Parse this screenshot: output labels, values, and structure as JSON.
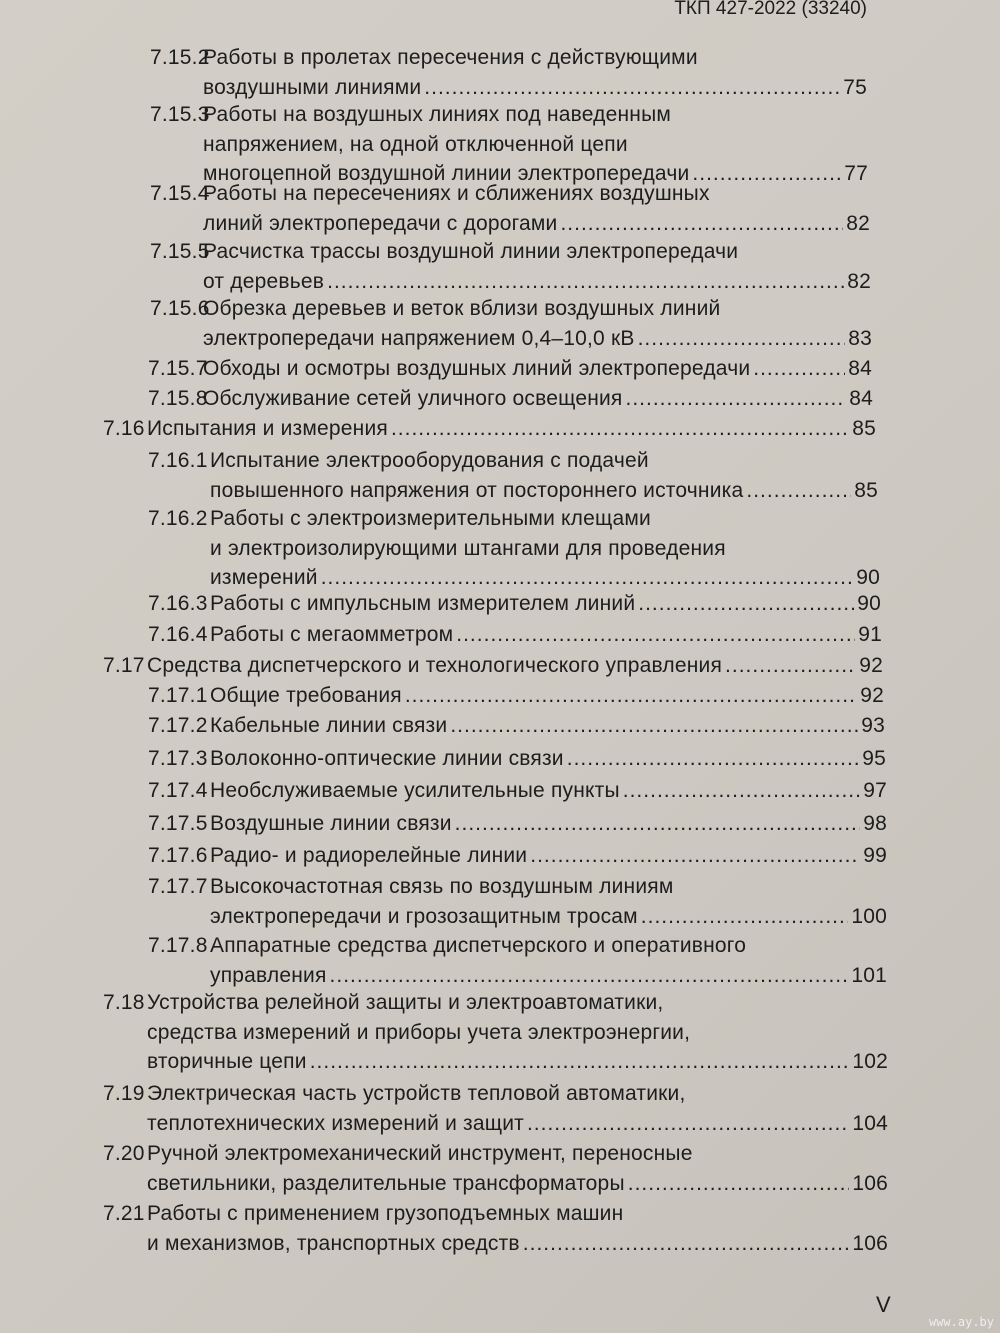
{
  "header": {
    "doc_code": "ТКП 427-2022 (33240)"
  },
  "footer": {
    "page_roman": "V",
    "watermark": "www.ay.by"
  },
  "entries": [
    {
      "num": "7.15.2",
      "lines": [
        "Работы в пролетах пересечения с действующими",
        "воздушными линиями"
      ],
      "page": "75"
    },
    {
      "num": "7.15.3",
      "lines": [
        "Работы на воздушных линиях под наведенным",
        "напряжением, на одной отключенной цепи",
        "многоцепной воздушной линии электропередачи"
      ],
      "page": "77"
    },
    {
      "num": "7.15.4",
      "lines": [
        "Работы на пересечениях и сближениях воздушных",
        "линий электропередачи с дорогами"
      ],
      "page": "82"
    },
    {
      "num": "7.15.5",
      "lines": [
        "Расчистка трассы воздушной линии электропередачи",
        "от деревьев"
      ],
      "page": "82"
    },
    {
      "num": "7.15.6",
      "lines": [
        "Обрезка деревьев и веток вблизи воздушных линий",
        "электропередачи напряжением 0,4–10,0 кВ"
      ],
      "page": "83"
    },
    {
      "num": "7.15.7",
      "lines": [
        "Обходы и осмотры воздушных линий электропередачи"
      ],
      "page": "84"
    },
    {
      "num": "7.15.8",
      "lines": [
        "Обслуживание сетей уличного освещения"
      ],
      "page": "84"
    },
    {
      "num": "7.16",
      "lines": [
        "Испытания и измерения"
      ],
      "page": "85"
    },
    {
      "num": "7.16.1",
      "lines": [
        "Испытание электрооборудования с подачей",
        "повышенного напряжения от постороннего источника"
      ],
      "page": "85"
    },
    {
      "num": "7.16.2",
      "lines": [
        "Работы с электроизмерительными клещами",
        "и электроизолирующими штангами для проведения",
        "измерений"
      ],
      "page": "90"
    },
    {
      "num": "7.16.3",
      "lines": [
        "Работы с импульсным измерителем линий"
      ],
      "page": "90"
    },
    {
      "num": "7.16.4",
      "lines": [
        "Работы с мегаомметром"
      ],
      "page": "91"
    },
    {
      "num": "7.17",
      "lines": [
        "Средства диспетчерского и технологического управления"
      ],
      "page": "92"
    },
    {
      "num": "7.17.1",
      "lines": [
        "Общие требования"
      ],
      "page": "92"
    },
    {
      "num": "7.17.2",
      "lines": [
        "Кабельные линии связи"
      ],
      "page": "93"
    },
    {
      "num": "7.17.3",
      "lines": [
        "Волоконно-оптические линии связи"
      ],
      "page": "95"
    },
    {
      "num": "7.17.4",
      "lines": [
        "Необслуживаемые усилительные пункты"
      ],
      "page": "97"
    },
    {
      "num": "7.17.5",
      "lines": [
        "Воздушные линии связи"
      ],
      "page": "98"
    },
    {
      "num": "7.17.6",
      "lines": [
        "Радио- и радиорелейные линии"
      ],
      "page": "99"
    },
    {
      "num": "7.17.7",
      "lines": [
        "Высокочастотная связь по воздушным линиям",
        "электропередачи и грозозащитным тросам"
      ],
      "page": "100"
    },
    {
      "num": "7.17.8",
      "lines": [
        "Аппаратные средства диспетчерского и оперативного",
        "управления"
      ],
      "page": "101"
    },
    {
      "num": "7.18",
      "lines": [
        "Устройства релейной защиты и электроавтоматики,",
        "средства измерений и приборы учета электроэнергии,",
        "вторичные цепи"
      ],
      "page": "102"
    },
    {
      "num": "7.19",
      "lines": [
        "Электрическая часть устройств тепловой автоматики,",
        "теплотехнических измерений и защит"
      ],
      "page": "104"
    },
    {
      "num": "7.20",
      "lines": [
        "Ручной электромеханический инструмент, переносные",
        "светильники, разделительные трансформаторы"
      ],
      "page": "106"
    },
    {
      "num": "7.21",
      "lines": [
        "Работы с применением грузоподъемных машин",
        "и механизмов, транспортных средств"
      ],
      "page": "106"
    }
  ]
}
